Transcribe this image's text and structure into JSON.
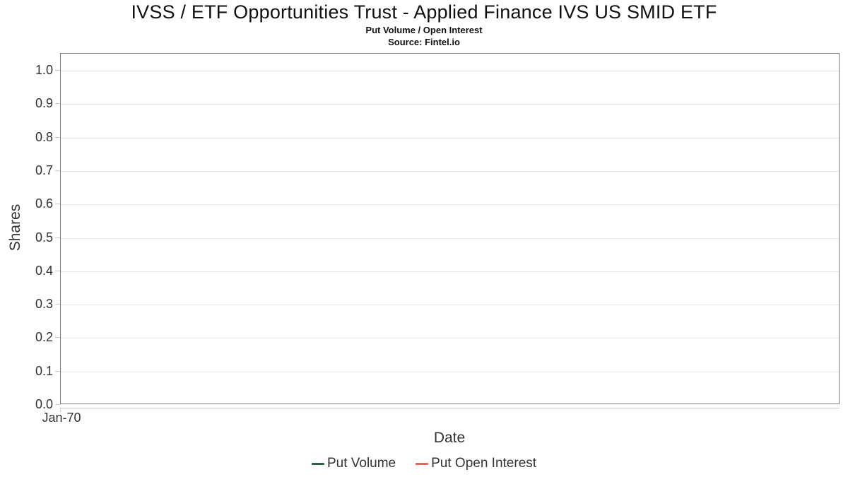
{
  "header": {
    "title": "IVSS / ETF Opportunities Trust - Applied Finance IVS US SMID ETF",
    "subtitle": "Put Volume / Open Interest",
    "source": "Source: Fintel.io"
  },
  "axes": {
    "y_title": "Shares",
    "x_title": "Date",
    "y_tick_labels": [
      "0.0",
      "0.1",
      "0.2",
      "0.3",
      "0.4",
      "0.5",
      "0.6",
      "0.7",
      "0.8",
      "0.9",
      "1.0"
    ],
    "x_ticks": [
      "Jan-70"
    ]
  },
  "legend": {
    "items": [
      {
        "label": "Put Volume",
        "color": "#2e6145"
      },
      {
        "label": "Put Open Interest",
        "color": "#f45f5b"
      }
    ]
  },
  "colors": {
    "plot_border": "#7d7d7d",
    "gridline": "#e6e6e6",
    "axis_line": "#cccccc",
    "tick_text": "#333333",
    "title_text": "#111111"
  },
  "chart_data": {
    "type": "line",
    "title": "IVSS / ETF Opportunities Trust - Applied Finance IVS US SMID ETF",
    "subtitle": "Put Volume / Open Interest",
    "source": "Source: Fintel.io",
    "xlabel": "Date",
    "ylabel": "Shares",
    "ylim": [
      0.0,
      1.0
    ],
    "yticks": [
      0.0,
      0.1,
      0.2,
      0.3,
      0.4,
      0.5,
      0.6,
      0.7,
      0.8,
      0.9,
      1.0
    ],
    "xticks": [
      "Jan-70"
    ],
    "grid": true,
    "legend_position": "bottom",
    "series": [
      {
        "name": "Put Volume",
        "color": "#2e6145",
        "x": [],
        "values": []
      },
      {
        "name": "Put Open Interest",
        "color": "#f45f5b",
        "x": [],
        "values": []
      }
    ]
  }
}
